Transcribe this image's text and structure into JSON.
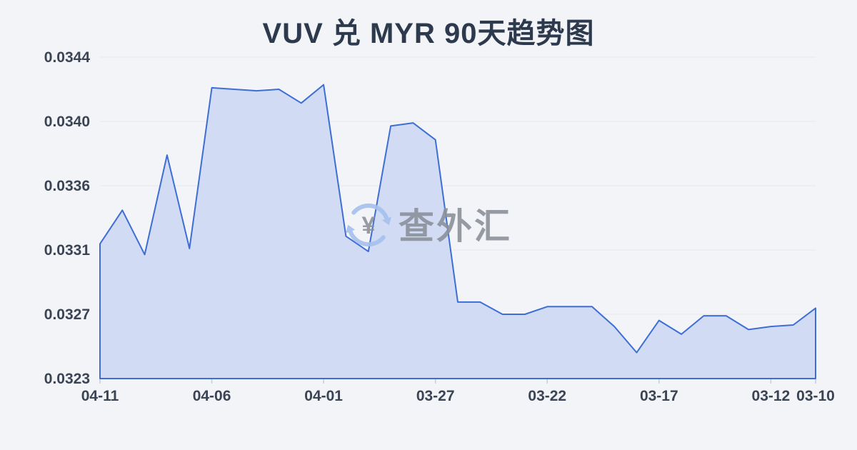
{
  "page": {
    "background_color": "#f2f4f7"
  },
  "chart_data": {
    "type": "area",
    "title": "VUV 兑 MYR 90天趋势图",
    "xlabel": "",
    "ylabel": "",
    "x_axis_reversed": true,
    "x": [
      "04-11",
      "04-10",
      "04-09",
      "04-08",
      "04-07",
      "04-06",
      "04-05",
      "04-04",
      "04-03",
      "04-02",
      "04-01",
      "03-31",
      "03-30",
      "03-29",
      "03-28",
      "03-27",
      "03-26",
      "03-25",
      "03-24",
      "03-23",
      "03-22",
      "03-21",
      "03-20",
      "03-19",
      "03-18",
      "03-17",
      "03-16",
      "03-15",
      "03-14",
      "03-13",
      "03-12",
      "03-11",
      "03-10"
    ],
    "values": [
      0.03318,
      0.0334,
      0.03311,
      0.03376,
      0.03315,
      0.0342,
      0.03419,
      0.03418,
      0.03419,
      0.0341,
      0.03422,
      0.03323,
      0.03313,
      0.03395,
      0.03397,
      0.03386,
      0.0328,
      0.0328,
      0.03272,
      0.03272,
      0.03277,
      0.03277,
      0.03277,
      0.03264,
      0.03247,
      0.03268,
      0.03259,
      0.03271,
      0.03271,
      0.03262,
      0.03264,
      0.03265,
      0.03276
    ],
    "ylim": [
      0.0323,
      0.0344
    ],
    "ytick_labels": [
      "0.0344",
      "0.0340",
      "0.0336",
      "0.0331",
      "0.0327",
      "0.0323"
    ],
    "xtick_labels": [
      "04-11",
      "04-06",
      "04-01",
      "03-27",
      "03-22",
      "03-17",
      "03-12",
      "03-10"
    ],
    "xtick_indices": [
      0,
      5,
      10,
      15,
      20,
      25,
      30,
      32
    ],
    "grid": true,
    "legend": "none",
    "colors": {
      "line": "#3e6ed4",
      "fill": "#cbd6f2",
      "grid": "#e5e8ed",
      "title": "#2d3a4e",
      "axis_label": "#3b4454",
      "tick": "#c9cdd5",
      "watermark_text": "#8b919b",
      "watermark_icon": "#a6c1ee"
    },
    "watermark": {
      "symbol": "¥",
      "text": "查外汇"
    }
  }
}
